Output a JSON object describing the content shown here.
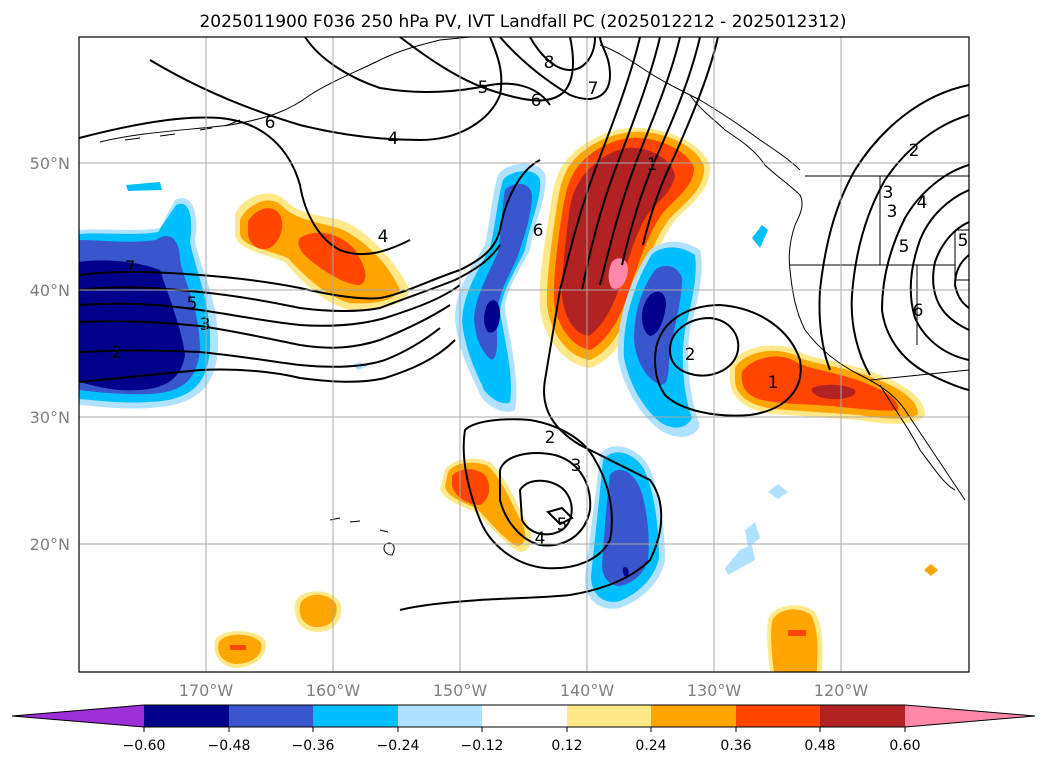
{
  "title": "2025011900 F036 250 hPa PV, IVT Landfall PC (2025012212 - 2025012312)",
  "map": {
    "lon_range": [
      -180,
      -110
    ],
    "lat_range": [
      10,
      60
    ],
    "lat_ticks": [
      {
        "value": 50,
        "label": "50°N"
      },
      {
        "value": 40,
        "label": "40°N"
      },
      {
        "value": 30,
        "label": "30°N"
      },
      {
        "value": 20,
        "label": "20°N"
      }
    ],
    "lon_ticks": [
      {
        "value": -170,
        "label": "170°W"
      },
      {
        "value": -160,
        "label": "160°W"
      },
      {
        "value": -150,
        "label": "150°W"
      },
      {
        "value": -140,
        "label": "140°W"
      },
      {
        "value": -130,
        "label": "130°W"
      },
      {
        "value": -120,
        "label": "120°W"
      }
    ],
    "grid": true,
    "contour_labels": [
      "8",
      "7",
      "6",
      "5",
      "4",
      "6",
      "4",
      "7",
      "5",
      "3",
      "2",
      "6",
      "1",
      "2",
      "3",
      "5",
      "2",
      "1",
      "4",
      "3",
      "5",
      "6",
      "2",
      "3",
      "4",
      "5"
    ]
  },
  "colorbar": {
    "labels": [
      "−0.60",
      "−0.48",
      "−0.36",
      "−0.24",
      "−0.12",
      "0.12",
      "0.24",
      "0.36",
      "0.48",
      "0.60"
    ],
    "colors": [
      "#9b30d8",
      "#00008b",
      "#3a56cc",
      "#00bfff",
      "#b0e2ff",
      "#ffffff",
      "#ffe88a",
      "#ffa500",
      "#ff4500",
      "#b22222",
      "#ff88aa"
    ]
  }
}
